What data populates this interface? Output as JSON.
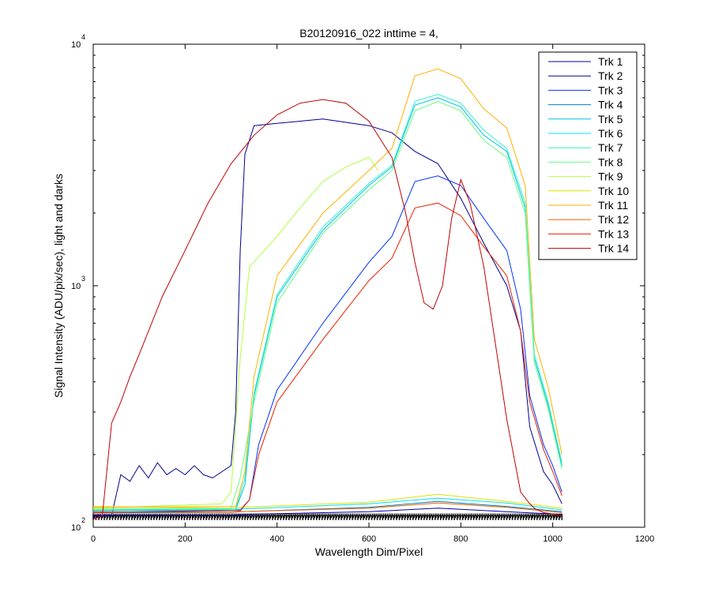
{
  "chart_data": {
    "type": "line",
    "title": "B20120916_022 inttime = 4,",
    "xlabel": "Wavelength Dim/Pixel",
    "ylabel": "Signal Intensity (ADU/pix/sec), light and darks",
    "xlim": [
      0,
      1200
    ],
    "ylim": [
      100,
      10000
    ],
    "yscale": "log",
    "grid": false,
    "legend_position": "top-right",
    "x_ticks": [
      0,
      200,
      400,
      600,
      800,
      1000,
      1200
    ],
    "x_tick_labels": [
      "0",
      "200",
      "400",
      "600",
      "800",
      "1000",
      "1200"
    ],
    "y_ticks": [
      {
        "value": 10000,
        "base": "10",
        "exp": "4"
      },
      {
        "value": 1000,
        "base": "10",
        "exp": "3"
      },
      {
        "value": 100,
        "base": "10",
        "exp": "2"
      }
    ],
    "series": [
      {
        "name": "Trk 1",
        "color": "#0000a8",
        "points": [
          [
            0,
            112
          ],
          [
            300,
            112
          ],
          [
            320,
            113
          ],
          [
            600,
            116
          ],
          [
            750,
            120
          ],
          [
            900,
            116
          ],
          [
            1020,
            113
          ]
        ]
      },
      {
        "name": "Trk 2",
        "color": "#00008f",
        "points": [
          [
            0,
            110
          ],
          [
            40,
            112
          ],
          [
            60,
            165
          ],
          [
            80,
            155
          ],
          [
            100,
            180
          ],
          [
            120,
            160
          ],
          [
            140,
            185
          ],
          [
            160,
            165
          ],
          [
            180,
            175
          ],
          [
            200,
            165
          ],
          [
            220,
            180
          ],
          [
            240,
            165
          ],
          [
            260,
            160
          ],
          [
            280,
            170
          ],
          [
            300,
            180
          ],
          [
            310,
            300
          ],
          [
            320,
            1400
          ],
          [
            330,
            3500
          ],
          [
            350,
            4600
          ],
          [
            400,
            4700
          ],
          [
            500,
            4900
          ],
          [
            600,
            4600
          ],
          [
            650,
            4300
          ],
          [
            700,
            3600
          ],
          [
            750,
            3200
          ],
          [
            800,
            2300
          ],
          [
            850,
            1500
          ],
          [
            900,
            1000
          ],
          [
            930,
            650
          ],
          [
            950,
            260
          ],
          [
            980,
            170
          ],
          [
            1000,
            150
          ],
          [
            1020,
            125
          ]
        ]
      },
      {
        "name": "Trk 3",
        "color": "#0032ff",
        "points": [
          [
            0,
            115
          ],
          [
            320,
            118
          ],
          [
            340,
            130
          ],
          [
            360,
            220
          ],
          [
            400,
            370
          ],
          [
            500,
            700
          ],
          [
            600,
            1250
          ],
          [
            650,
            1600
          ],
          [
            700,
            2700
          ],
          [
            750,
            2850
          ],
          [
            800,
            2600
          ],
          [
            850,
            1900
          ],
          [
            900,
            1400
          ],
          [
            930,
            800
          ],
          [
            950,
            350
          ],
          [
            980,
            220
          ],
          [
            1000,
            180
          ],
          [
            1020,
            140
          ]
        ]
      },
      {
        "name": "Trk 4",
        "color": "#0080c8",
        "points": [
          [
            0,
            115
          ],
          [
            300,
            115
          ],
          [
            320,
            116
          ],
          [
            600,
            121
          ],
          [
            750,
            128
          ],
          [
            900,
            122
          ],
          [
            1020,
            116
          ]
        ]
      },
      {
        "name": "Trk 5",
        "color": "#00c0e0",
        "points": [
          [
            0,
            117
          ],
          [
            310,
            118
          ],
          [
            330,
            150
          ],
          [
            350,
            350
          ],
          [
            400,
            900
          ],
          [
            500,
            1700
          ],
          [
            600,
            2600
          ],
          [
            650,
            3100
          ],
          [
            700,
            5600
          ],
          [
            750,
            6000
          ],
          [
            800,
            5500
          ],
          [
            850,
            4200
          ],
          [
            900,
            3600
          ],
          [
            940,
            2100
          ],
          [
            960,
            500
          ],
          [
            990,
            320
          ],
          [
            1020,
            180
          ]
        ]
      },
      {
        "name": "Trk 6",
        "color": "#00e0ff",
        "points": [
          [
            0,
            118
          ],
          [
            300,
            118
          ],
          [
            320,
            119
          ],
          [
            600,
            125
          ],
          [
            750,
            132
          ],
          [
            900,
            126
          ],
          [
            1020,
            118
          ]
        ]
      },
      {
        "name": "Trk 7",
        "color": "#30f0d0",
        "points": [
          [
            0,
            118
          ],
          [
            310,
            119
          ],
          [
            330,
            160
          ],
          [
            350,
            360
          ],
          [
            400,
            920
          ],
          [
            500,
            1750
          ],
          [
            600,
            2650
          ],
          [
            650,
            3150
          ],
          [
            700,
            5800
          ],
          [
            750,
            6200
          ],
          [
            800,
            5700
          ],
          [
            850,
            4400
          ],
          [
            900,
            3700
          ],
          [
            940,
            2200
          ],
          [
            960,
            520
          ],
          [
            990,
            330
          ],
          [
            1020,
            185
          ]
        ]
      },
      {
        "name": "Trk 8",
        "color": "#60ff80",
        "points": [
          [
            0,
            119
          ],
          [
            300,
            120
          ],
          [
            320,
            160
          ],
          [
            350,
            330
          ],
          [
            400,
            850
          ],
          [
            500,
            1650
          ],
          [
            600,
            2500
          ],
          [
            650,
            3000
          ],
          [
            700,
            5300
          ],
          [
            750,
            5800
          ],
          [
            800,
            5300
          ],
          [
            850,
            4000
          ],
          [
            900,
            3400
          ],
          [
            940,
            2000
          ],
          [
            960,
            480
          ],
          [
            990,
            310
          ],
          [
            1020,
            175
          ]
        ]
      },
      {
        "name": "Trk 9",
        "color": "#b0ff40",
        "points": [
          [
            0,
            120
          ],
          [
            280,
            125
          ],
          [
            300,
            140
          ],
          [
            320,
            500
          ],
          [
            340,
            1200
          ],
          [
            400,
            1600
          ],
          [
            450,
            2100
          ],
          [
            500,
            2700
          ],
          [
            550,
            3100
          ],
          [
            600,
            3400
          ],
          [
            620,
            3000
          ]
        ]
      },
      {
        "name": "Trk 10",
        "color": "#e0e000",
        "points": [
          [
            0,
            122
          ],
          [
            300,
            120
          ],
          [
            320,
            121
          ],
          [
            600,
            127
          ],
          [
            750,
            137
          ],
          [
            900,
            128
          ],
          [
            1020,
            120
          ]
        ]
      },
      {
        "name": "Trk 11",
        "color": "#ffb000",
        "points": [
          [
            0,
            121
          ],
          [
            310,
            122
          ],
          [
            330,
            170
          ],
          [
            350,
            420
          ],
          [
            400,
            1100
          ],
          [
            500,
            2000
          ],
          [
            600,
            3000
          ],
          [
            650,
            3700
          ],
          [
            700,
            7400
          ],
          [
            750,
            7900
          ],
          [
            800,
            7200
          ],
          [
            850,
            5400
          ],
          [
            900,
            4500
          ],
          [
            940,
            2600
          ],
          [
            960,
            600
          ],
          [
            990,
            380
          ],
          [
            1020,
            200
          ]
        ]
      },
      {
        "name": "Trk 12",
        "color": "#ff6000",
        "points": [
          [
            0,
            116
          ],
          [
            300,
            115
          ],
          [
            320,
            116
          ],
          [
            600,
            120
          ],
          [
            750,
            126
          ],
          [
            900,
            121
          ],
          [
            1020,
            115
          ]
        ]
      },
      {
        "name": "Trk 13",
        "color": "#e82000",
        "points": [
          [
            0,
            115
          ],
          [
            320,
            117
          ],
          [
            340,
            130
          ],
          [
            360,
            200
          ],
          [
            400,
            330
          ],
          [
            500,
            600
          ],
          [
            600,
            1050
          ],
          [
            650,
            1300
          ],
          [
            700,
            2100
          ],
          [
            750,
            2200
          ],
          [
            800,
            1950
          ],
          [
            850,
            1450
          ],
          [
            900,
            1100
          ],
          [
            930,
            650
          ],
          [
            950,
            330
          ],
          [
            980,
            210
          ],
          [
            1000,
            170
          ],
          [
            1020,
            135
          ]
        ]
      },
      {
        "name": "Trk 14",
        "color": "#c00000",
        "points": [
          [
            0,
            108
          ],
          [
            20,
            112
          ],
          [
            40,
            270
          ],
          [
            60,
            330
          ],
          [
            80,
            420
          ],
          [
            100,
            520
          ],
          [
            150,
            900
          ],
          [
            200,
            1400
          ],
          [
            250,
            2200
          ],
          [
            300,
            3200
          ],
          [
            350,
            4200
          ],
          [
            400,
            5100
          ],
          [
            450,
            5700
          ],
          [
            500,
            5900
          ],
          [
            550,
            5700
          ],
          [
            600,
            4800
          ],
          [
            650,
            3400
          ],
          [
            680,
            2000
          ],
          [
            700,
            1250
          ],
          [
            720,
            850
          ],
          [
            740,
            800
          ],
          [
            760,
            1000
          ],
          [
            780,
            1900
          ],
          [
            800,
            2750
          ],
          [
            820,
            2200
          ],
          [
            850,
            1200
          ],
          [
            880,
            500
          ],
          [
            900,
            280
          ],
          [
            930,
            140
          ],
          [
            950,
            125
          ],
          [
            960,
            120
          ],
          [
            980,
            115
          ],
          [
            1020,
            112
          ]
        ]
      }
    ]
  }
}
